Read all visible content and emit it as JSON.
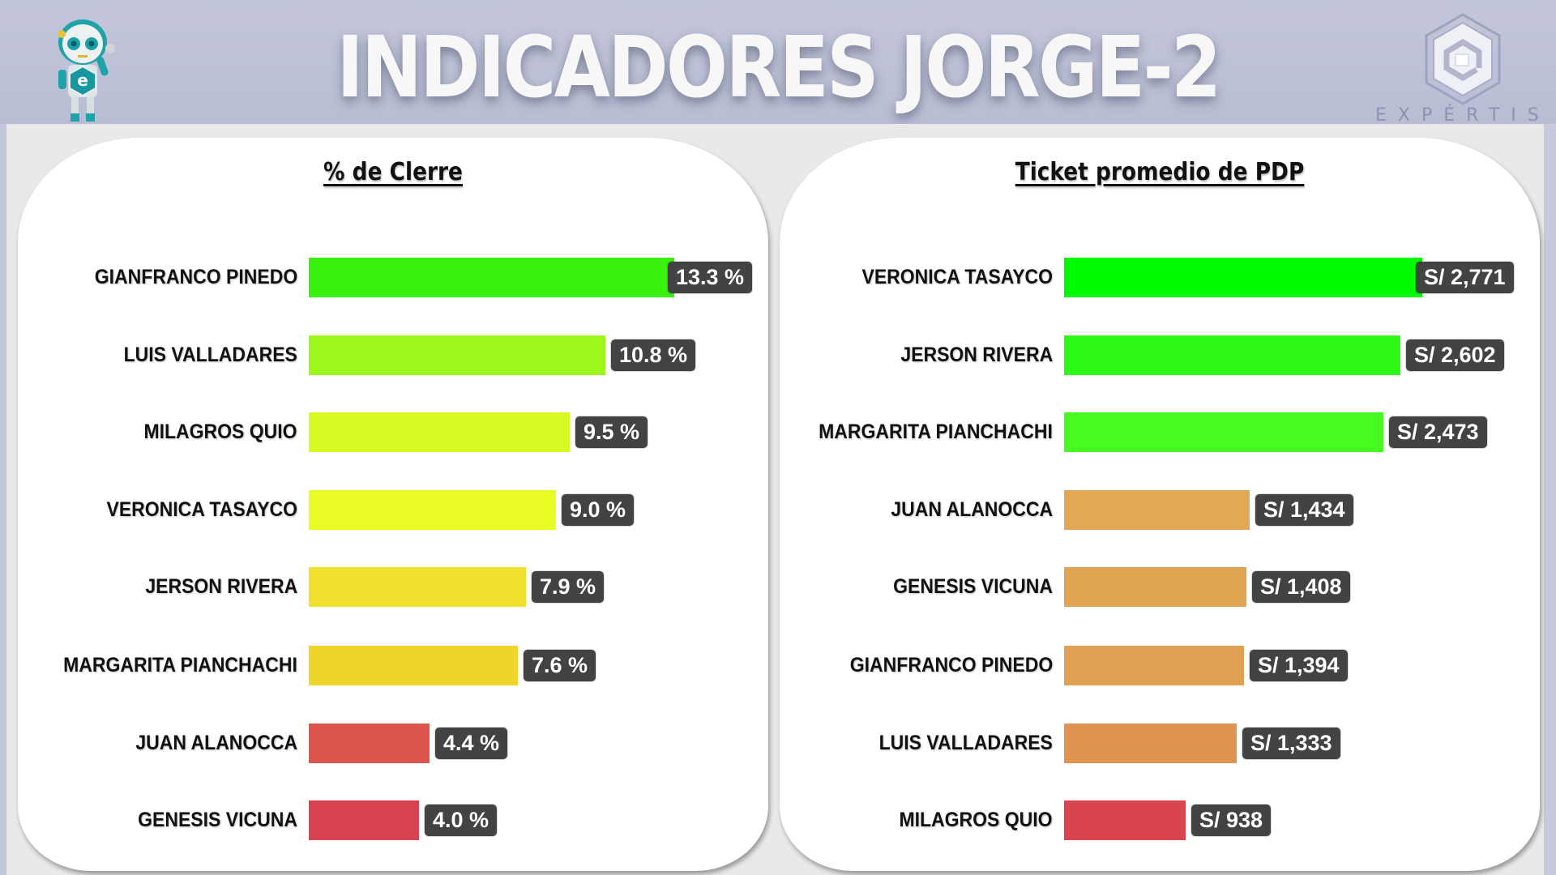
{
  "header": {
    "title": "INDICADORES JORGE-2",
    "brand_name": "EXPÉRTIS",
    "mascot": "robot-mascot-icon",
    "logo": "expertis-hexagon-logo-icon",
    "background_color": "#bfc2d8"
  },
  "panels": [
    {
      "title": "% de Clerre",
      "rows": [
        {
          "name": "GIANFRANCO PINEDO",
          "value": 13.3,
          "label": "13.3 %",
          "color": "#38f20e"
        },
        {
          "name": "LUIS VALLADARES",
          "value": 10.8,
          "label": "10.8 %",
          "color": "#9cf81a"
        },
        {
          "name": "MILAGROS QUIO",
          "value": 9.5,
          "label": "9.5 %",
          "color": "#d7fb22"
        },
        {
          "name": "VERONICA TASAYCO",
          "value": 9.0,
          "label": "9.0 %",
          "color": "#e8fb25"
        },
        {
          "name": "JERSON RIVERA",
          "value": 7.9,
          "label": "7.9 %",
          "color": "#f0e02c"
        },
        {
          "name": "MARGARITA PIANCHACHI",
          "value": 7.6,
          "label": "7.6 %",
          "color": "#efd42c"
        },
        {
          "name": "JUAN ALANOCCA",
          "value": 4.4,
          "label": "4.4 %",
          "color": "#db554b"
        },
        {
          "name": "GENESIS VICUNA",
          "value": 4.0,
          "label": "4.0 %",
          "color": "#d8434f"
        }
      ]
    },
    {
      "title": "Ticket promedio de PDP",
      "rows": [
        {
          "name": "VERONICA TASAYCO",
          "value": 2771,
          "label": "S/ 2,771",
          "color": "#00fa00"
        },
        {
          "name": "JERSON RIVERA",
          "value": 2602,
          "label": "S/ 2,602",
          "color": "#2dfa17"
        },
        {
          "name": "MARGARITA PIANCHACHI",
          "value": 2473,
          "label": "S/ 2,473",
          "color": "#47fa20"
        },
        {
          "name": "JUAN ALANOCCA",
          "value": 1434,
          "label": "S/ 1,434",
          "color": "#e2a855"
        },
        {
          "name": "GENESIS VICUNA",
          "value": 1408,
          "label": "S/ 1,408",
          "color": "#e1a453"
        },
        {
          "name": "GIANFRANCO PINEDO",
          "value": 1394,
          "label": "S/ 1,394",
          "color": "#e0a052"
        },
        {
          "name": "LUIS VALLADARES",
          "value": 1333,
          "label": "S/ 1,333",
          "color": "#df944f"
        },
        {
          "name": "MILAGROS QUIO",
          "value": 938,
          "label": "S/ 938",
          "color": "#d9444f"
        }
      ]
    }
  ],
  "chart_data": [
    {
      "type": "bar",
      "orientation": "horizontal",
      "title": "% de Clerre",
      "categories": [
        "GIANFRANCO PINEDO",
        "LUIS VALLADARES",
        "MILAGROS QUIO",
        "VERONICA TASAYCO",
        "JERSON RIVERA",
        "MARGARITA PIANCHACHI",
        "JUAN ALANOCCA",
        "GENESIS VICUNA"
      ],
      "values": [
        13.3,
        10.8,
        9.5,
        9.0,
        7.9,
        7.6,
        4.4,
        4.0
      ],
      "data_labels": [
        "13.3 %",
        "10.8 %",
        "9.5 %",
        "9.0 %",
        "7.9 %",
        "7.6 %",
        "4.4 %",
        "4.0 %"
      ],
      "unit": "%",
      "xlabel": "",
      "ylabel": "",
      "grid": false,
      "legend": "none",
      "colors": [
        "#38f20e",
        "#9cf81a",
        "#d7fb22",
        "#e8fb25",
        "#f0e02c",
        "#efd42c",
        "#db554b",
        "#d8434f"
      ]
    },
    {
      "type": "bar",
      "orientation": "horizontal",
      "title": "Ticket promedio de PDP",
      "categories": [
        "VERONICA TASAYCO",
        "JERSON RIVERA",
        "MARGARITA PIANCHACHI",
        "JUAN ALANOCCA",
        "GENESIS VICUNA",
        "GIANFRANCO PINEDO",
        "LUIS VALLADARES",
        "MILAGROS QUIO"
      ],
      "values": [
        2771,
        2602,
        2473,
        1434,
        1408,
        1394,
        1333,
        938
      ],
      "data_labels": [
        "S/ 2,771",
        "S/ 2,602",
        "S/ 2,473",
        "S/ 1,434",
        "S/ 1,408",
        "S/ 1,394",
        "S/ 1,333",
        "S/ 938"
      ],
      "unit": "S/",
      "xlabel": "",
      "ylabel": "",
      "grid": false,
      "legend": "none",
      "colors": [
        "#00fa00",
        "#2dfa17",
        "#47fa20",
        "#e2a855",
        "#e1a453",
        "#e0a052",
        "#df944f",
        "#d9444f"
      ]
    }
  ]
}
